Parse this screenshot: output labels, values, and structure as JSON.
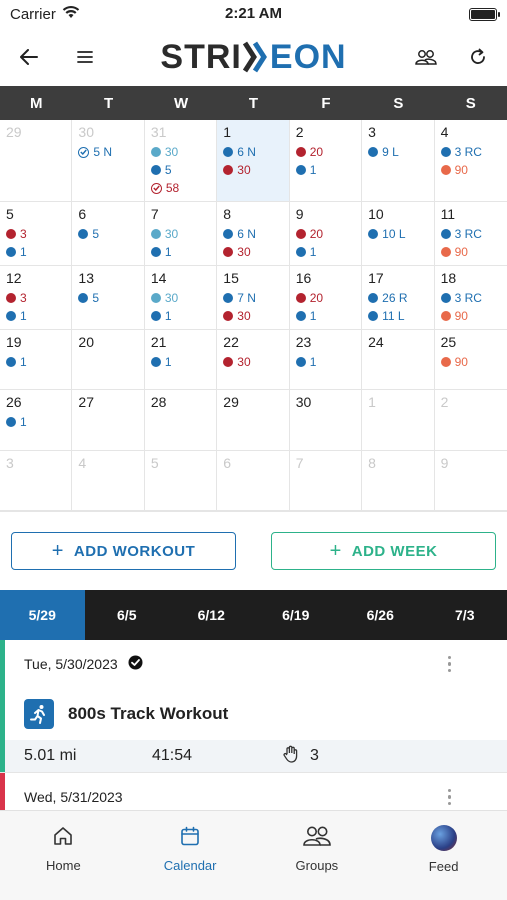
{
  "status": {
    "carrier": "Carrier",
    "time": "2:21 AM"
  },
  "header": {
    "logo_left": "STRI",
    "logo_mid": "E",
    "logo_right": "ON"
  },
  "calendar": {
    "weekdays": [
      "M",
      "T",
      "W",
      "T",
      "F",
      "S",
      "S"
    ],
    "cells": [
      {
        "date": "29",
        "muted": true,
        "entries": []
      },
      {
        "date": "30",
        "muted": true,
        "entries": [
          {
            "kind": "check",
            "color": "#1f6fb0",
            "text": "5 N"
          }
        ]
      },
      {
        "date": "31",
        "muted": true,
        "entries": [
          {
            "kind": "dot",
            "color": "#5aa9c9",
            "text": "30"
          },
          {
            "kind": "dot",
            "color": "#1f6fb0",
            "text": "5"
          },
          {
            "kind": "check",
            "color": "#b3232f",
            "text": "58"
          }
        ]
      },
      {
        "date": "1",
        "today": true,
        "entries": [
          {
            "kind": "dot",
            "color": "#1f6fb0",
            "text": "6 N"
          },
          {
            "kind": "dot",
            "color": "#b3232f",
            "text": "30"
          }
        ]
      },
      {
        "date": "2",
        "entries": [
          {
            "kind": "dot",
            "color": "#b3232f",
            "text": "20"
          },
          {
            "kind": "dot",
            "color": "#1f6fb0",
            "text": "1"
          }
        ]
      },
      {
        "date": "3",
        "entries": [
          {
            "kind": "dot",
            "color": "#1f6fb0",
            "text": "9 L"
          }
        ]
      },
      {
        "date": "4",
        "entries": [
          {
            "kind": "dot",
            "color": "#1f6fb0",
            "text": "3 RC"
          },
          {
            "kind": "dot",
            "color": "#e8694a",
            "text": "90"
          }
        ]
      },
      {
        "date": "5",
        "entries": [
          {
            "kind": "dot",
            "color": "#b3232f",
            "text": "3"
          },
          {
            "kind": "dot",
            "color": "#1f6fb0",
            "text": "1"
          }
        ]
      },
      {
        "date": "6",
        "entries": [
          {
            "kind": "dot",
            "color": "#1f6fb0",
            "text": "5"
          }
        ]
      },
      {
        "date": "7",
        "entries": [
          {
            "kind": "dot",
            "color": "#5aa9c9",
            "text": "30"
          },
          {
            "kind": "dot",
            "color": "#1f6fb0",
            "text": "1"
          }
        ]
      },
      {
        "date": "8",
        "entries": [
          {
            "kind": "dot",
            "color": "#1f6fb0",
            "text": "6 N"
          },
          {
            "kind": "dot",
            "color": "#b3232f",
            "text": "30"
          }
        ]
      },
      {
        "date": "9",
        "entries": [
          {
            "kind": "dot",
            "color": "#b3232f",
            "text": "20"
          },
          {
            "kind": "dot",
            "color": "#1f6fb0",
            "text": "1"
          }
        ]
      },
      {
        "date": "10",
        "entries": [
          {
            "kind": "dot",
            "color": "#1f6fb0",
            "text": "10 L"
          }
        ]
      },
      {
        "date": "11",
        "entries": [
          {
            "kind": "dot",
            "color": "#1f6fb0",
            "text": "3 RC"
          },
          {
            "kind": "dot",
            "color": "#e8694a",
            "text": "90"
          }
        ]
      },
      {
        "date": "12",
        "entries": [
          {
            "kind": "dot",
            "color": "#b3232f",
            "text": "3"
          },
          {
            "kind": "dot",
            "color": "#1f6fb0",
            "text": "1"
          }
        ]
      },
      {
        "date": "13",
        "entries": [
          {
            "kind": "dot",
            "color": "#1f6fb0",
            "text": "5"
          }
        ]
      },
      {
        "date": "14",
        "entries": [
          {
            "kind": "dot",
            "color": "#5aa9c9",
            "text": "30"
          },
          {
            "kind": "dot",
            "color": "#1f6fb0",
            "text": "1"
          }
        ]
      },
      {
        "date": "15",
        "entries": [
          {
            "kind": "dot",
            "color": "#1f6fb0",
            "text": "7 N"
          },
          {
            "kind": "dot",
            "color": "#b3232f",
            "text": "30"
          }
        ]
      },
      {
        "date": "16",
        "entries": [
          {
            "kind": "dot",
            "color": "#b3232f",
            "text": "20"
          },
          {
            "kind": "dot",
            "color": "#1f6fb0",
            "text": "1"
          }
        ]
      },
      {
        "date": "17",
        "entries": [
          {
            "kind": "dot",
            "color": "#1f6fb0",
            "text": "26 R"
          },
          {
            "kind": "dot",
            "color": "#1f6fb0",
            "text": "11 L"
          }
        ]
      },
      {
        "date": "18",
        "entries": [
          {
            "kind": "dot",
            "color": "#1f6fb0",
            "text": "3 RC"
          },
          {
            "kind": "dot",
            "color": "#e8694a",
            "text": "90"
          }
        ]
      },
      {
        "date": "19",
        "entries": [
          {
            "kind": "dot",
            "color": "#1f6fb0",
            "text": "1"
          }
        ]
      },
      {
        "date": "20",
        "entries": []
      },
      {
        "date": "21",
        "entries": [
          {
            "kind": "dot",
            "color": "#1f6fb0",
            "text": "1"
          }
        ]
      },
      {
        "date": "22",
        "entries": [
          {
            "kind": "dot",
            "color": "#b3232f",
            "text": "30"
          }
        ]
      },
      {
        "date": "23",
        "entries": [
          {
            "kind": "dot",
            "color": "#1f6fb0",
            "text": "1"
          }
        ]
      },
      {
        "date": "24",
        "entries": []
      },
      {
        "date": "25",
        "entries": [
          {
            "kind": "dot",
            "color": "#e8694a",
            "text": "90"
          }
        ]
      },
      {
        "date": "26",
        "entries": [
          {
            "kind": "dot",
            "color": "#1f6fb0",
            "text": "1"
          }
        ]
      },
      {
        "date": "27",
        "entries": []
      },
      {
        "date": "28",
        "entries": []
      },
      {
        "date": "29",
        "entries": []
      },
      {
        "date": "30",
        "entries": []
      },
      {
        "date": "1",
        "muted": true,
        "entries": []
      },
      {
        "date": "2",
        "muted": true,
        "entries": []
      },
      {
        "date": "3",
        "muted": true,
        "entries": []
      },
      {
        "date": "4",
        "muted": true,
        "entries": []
      },
      {
        "date": "5",
        "muted": true,
        "entries": []
      },
      {
        "date": "6",
        "muted": true,
        "entries": []
      },
      {
        "date": "7",
        "muted": true,
        "entries": []
      },
      {
        "date": "8",
        "muted": true,
        "entries": []
      },
      {
        "date": "9",
        "muted": true,
        "entries": []
      }
    ]
  },
  "actions": {
    "add_workout": "ADD WORKOUT",
    "add_week": "ADD WEEK",
    "add_workout_color": "#1f6fb0",
    "add_week_color": "#2db28a"
  },
  "week_tabs": [
    "5/29",
    "6/5",
    "6/12",
    "6/19",
    "6/26",
    "7/3"
  ],
  "workouts": [
    {
      "date": "Tue, 5/30/2023",
      "bar_color": "#2db28a",
      "title": "800s Track Workout",
      "distance": "5.01 mi",
      "duration": "41:54",
      "likes": "3"
    },
    {
      "date": "Wed, 5/31/2023",
      "bar_color": "#d9344a"
    }
  ],
  "tabbar": {
    "home": "Home",
    "calendar": "Calendar",
    "groups": "Groups",
    "feed": "Feed"
  },
  "colors": {
    "brand_blue": "#1f6fb0",
    "header_dark": "#3d3d3d"
  }
}
